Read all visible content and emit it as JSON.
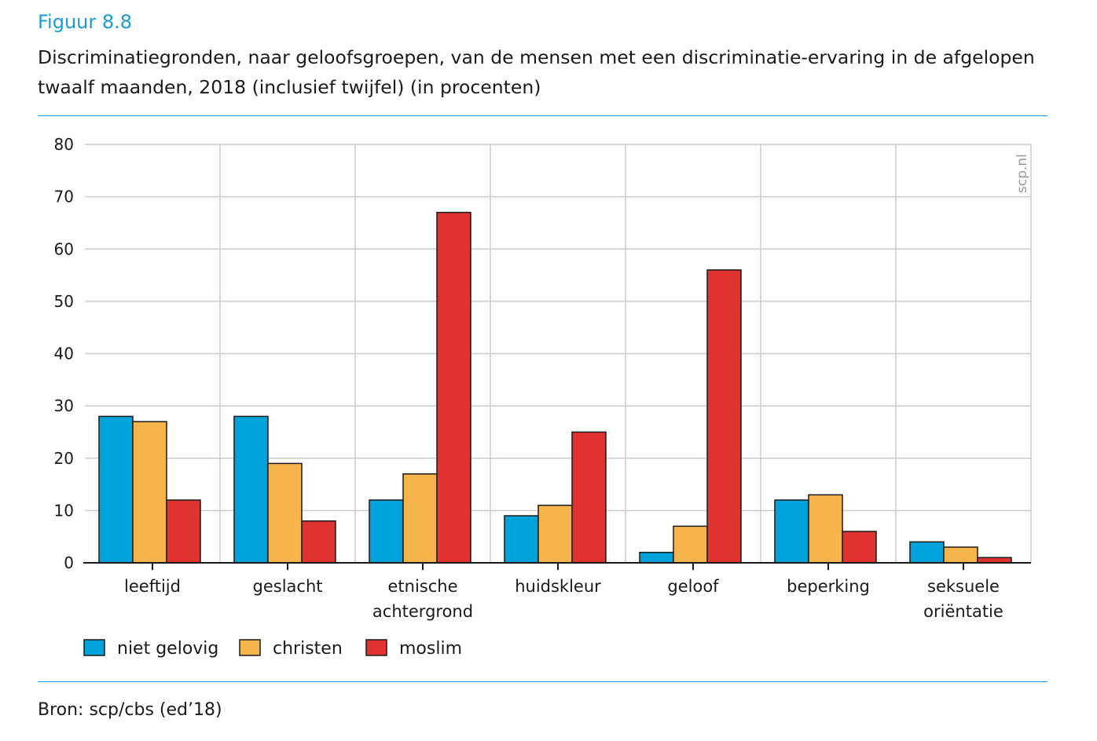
{
  "figure_label": "Figuur 8.8",
  "title": "Discriminatiegronden, naar geloofsgroepen, van de mensen met een discriminatie-ervaring in de afgelopen twaalf maanden, 2018 (inclusief twijfel) (in procenten)",
  "watermark": "scp.nl",
  "source": "Bron: scp/cbs (ed’18)",
  "colors": {
    "niet gelovig": "#00a3d9",
    "christen": "#f5b54c",
    "moslim": "#e03331",
    "grid": "#cccccc",
    "rule": "#1a9bd7"
  },
  "chart_data": {
    "type": "bar",
    "categories": [
      [
        "leeftijd"
      ],
      [
        "geslacht"
      ],
      [
        "etnische",
        "achtergrond"
      ],
      [
        "huidskleur"
      ],
      [
        "geloof"
      ],
      [
        "beperking"
      ],
      [
        "seksuele",
        "oriëntatie"
      ]
    ],
    "series": [
      {
        "name": "niet gelovig",
        "values": [
          28,
          28,
          12,
          9,
          2,
          12,
          4
        ]
      },
      {
        "name": "christen",
        "values": [
          27,
          19,
          17,
          11,
          7,
          13,
          3
        ]
      },
      {
        "name": "moslim",
        "values": [
          12,
          8,
          67,
          25,
          56,
          6,
          1
        ]
      }
    ],
    "ylim": [
      0,
      80
    ],
    "yticks": [
      0,
      10,
      20,
      30,
      40,
      50,
      60,
      70,
      80
    ],
    "grid": true,
    "legend_position": "bottom-left",
    "xlabel": "",
    "ylabel": ""
  }
}
